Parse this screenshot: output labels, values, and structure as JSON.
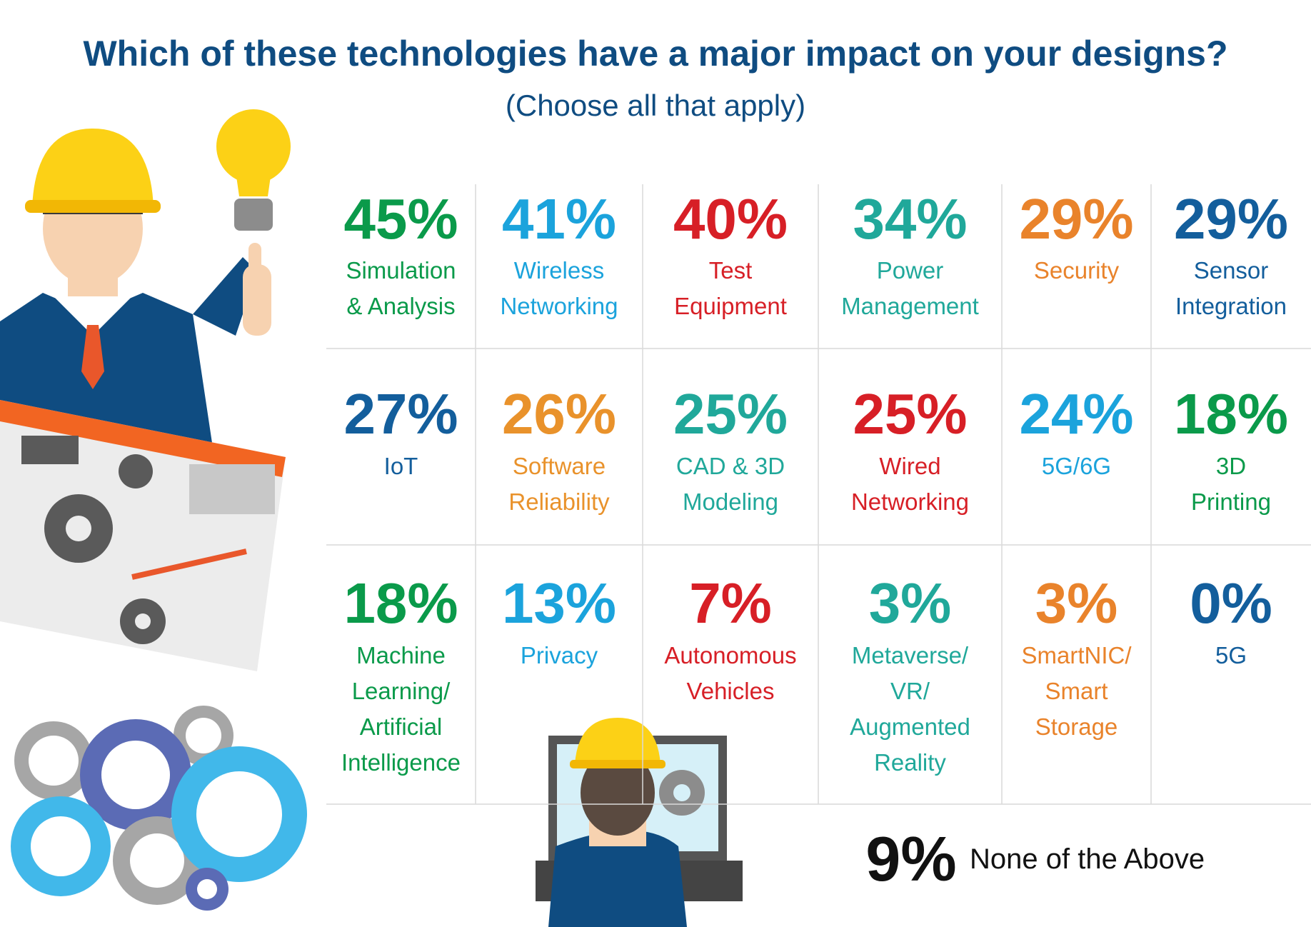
{
  "header": {
    "title": "Which of these technologies have a major impact on your designs?",
    "subtitle": "(Choose all that apply)"
  },
  "items": [
    {
      "percent": "45%",
      "label": [
        "Simulation",
        "& Analysis"
      ],
      "color": "#0a9a4a"
    },
    {
      "percent": "41%",
      "label": [
        "Wireless",
        "Networking"
      ],
      "color": "#1ba3dc"
    },
    {
      "percent": "40%",
      "label": [
        "Test",
        "Equipment"
      ],
      "color": "#d71f26"
    },
    {
      "percent": "34%",
      "label": [
        "Power",
        "Management"
      ],
      "color": "#20a89a"
    },
    {
      "percent": "29%",
      "label": [
        "Security"
      ],
      "color": "#e9832b"
    },
    {
      "percent": "29%",
      "label": [
        "Sensor",
        "Integration"
      ],
      "color": "#135e9c"
    },
    {
      "percent": "27%",
      "label": [
        "IoT"
      ],
      "color": "#135e9c"
    },
    {
      "percent": "26%",
      "label": [
        "Software",
        "Reliability"
      ],
      "color": "#e9922b"
    },
    {
      "percent": "25%",
      "label": [
        "CAD & 3D",
        "Modeling"
      ],
      "color": "#20a89a"
    },
    {
      "percent": "25%",
      "label": [
        "Wired",
        "Networking"
      ],
      "color": "#d71f26"
    },
    {
      "percent": "24%",
      "label": [
        "5G/6G"
      ],
      "color": "#1ba3dc"
    },
    {
      "percent": "18%",
      "label": [
        "3D",
        "Printing"
      ],
      "color": "#0a9a4a"
    },
    {
      "percent": "18%",
      "label": [
        "Machine",
        "Learning/",
        "Artificial",
        "Intelligence"
      ],
      "color": "#0a9a4a"
    },
    {
      "percent": "13%",
      "label": [
        "Privacy"
      ],
      "color": "#1ba3dc"
    },
    {
      "percent": "7%",
      "label": [
        "Autonomous",
        "Vehicles"
      ],
      "color": "#d71f26"
    },
    {
      "percent": "3%",
      "label": [
        "Metaverse/",
        "VR/",
        "Augmented",
        "Reality"
      ],
      "color": "#20a89a"
    },
    {
      "percent": "3%",
      "label": [
        "SmartNIC/",
        "Smart",
        "Storage"
      ],
      "color": "#e9832b"
    },
    {
      "percent": "0%",
      "label": [
        "5G"
      ],
      "color": "#135e9c"
    }
  ],
  "none": {
    "percent": "9%",
    "label": "None of the Above"
  }
}
